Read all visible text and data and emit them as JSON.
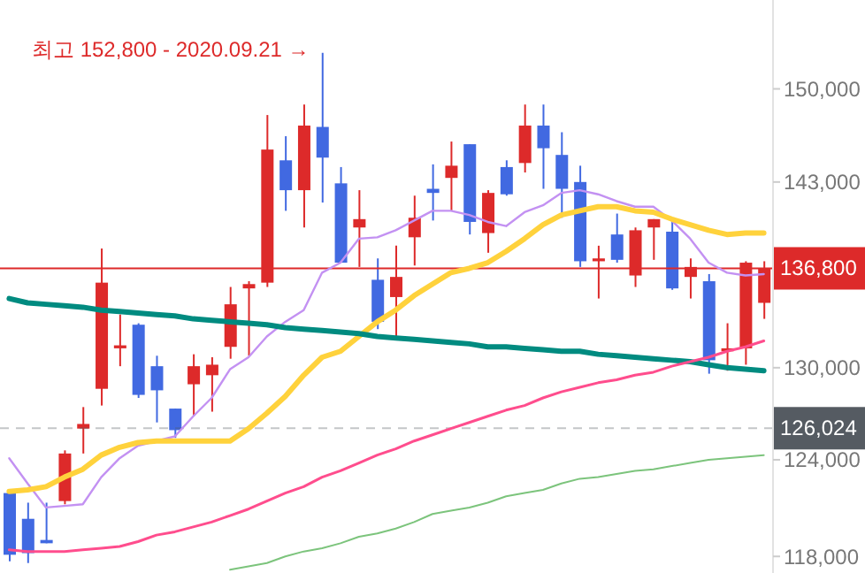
{
  "chart_data": {
    "type": "candlestick",
    "log": true,
    "tick_labels": "y",
    "categories": [
      null,
      null,
      null,
      null,
      null,
      null,
      null,
      null,
      null,
      null,
      null,
      null,
      null,
      null,
      null,
      null,
      null,
      null,
      null,
      null,
      null,
      null,
      null,
      null,
      null,
      null,
      null,
      null,
      null,
      null,
      null,
      null,
      null,
      null,
      null,
      null,
      null,
      null,
      null,
      null,
      null,
      null
    ],
    "ohlc": [
      [
        121900,
        122100,
        117700,
        118100
      ],
      [
        120300,
        121300,
        117600,
        118200
      ],
      [
        119000,
        121300,
        118800,
        118800
      ],
      [
        121400,
        124600,
        121200,
        124400
      ],
      [
        126000,
        127400,
        124400,
        126300
      ],
      [
        128600,
        138200,
        127500,
        135800
      ],
      [
        131300,
        133600,
        130100,
        131500
      ],
      [
        132900,
        133000,
        128000,
        128200
      ],
      [
        130100,
        130800,
        126400,
        128500
      ],
      [
        127300,
        127300,
        125400,
        125900
      ],
      [
        128900,
        130900,
        126800,
        130100
      ],
      [
        129500,
        130700,
        127100,
        130200
      ],
      [
        131400,
        135500,
        130600,
        134300
      ],
      [
        135400,
        135900,
        130800,
        135700
      ],
      [
        135800,
        148000,
        135500,
        145400
      ],
      [
        144600,
        146400,
        140900,
        142400
      ],
      [
        142400,
        148800,
        139700,
        147200
      ],
      [
        147100,
        152800,
        141500,
        144800
      ],
      [
        142900,
        144100,
        137200,
        137200
      ],
      [
        139700,
        142400,
        136900,
        140300
      ],
      [
        136000,
        137500,
        132600,
        133100
      ],
      [
        134800,
        138400,
        132000,
        136200
      ],
      [
        139000,
        142000,
        137000,
        140400
      ],
      [
        142500,
        144300,
        140200,
        142200
      ],
      [
        143300,
        146000,
        140900,
        144200
      ],
      [
        145800,
        145800,
        139200,
        140100
      ],
      [
        139300,
        142400,
        137900,
        142200
      ],
      [
        144100,
        144600,
        142000,
        142100
      ],
      [
        144400,
        148800,
        143700,
        147200
      ],
      [
        147200,
        148800,
        142500,
        145500
      ],
      [
        145000,
        146700,
        140400,
        142500
      ],
      [
        143000,
        144200,
        136900,
        137300
      ],
      [
        137300,
        138400,
        134700,
        137500
      ],
      [
        139200,
        140700,
        137200,
        137400
      ],
      [
        136300,
        139700,
        135500,
        139500
      ],
      [
        139700,
        140300,
        137400,
        140300
      ],
      [
        139400,
        140200,
        135300,
        135400
      ],
      [
        136200,
        137500,
        134700,
        136900
      ],
      [
        135900,
        136400,
        129600,
        130500
      ],
      [
        131100,
        133000,
        129800,
        131300
      ],
      [
        131300,
        137300,
        130200,
        137200
      ],
      [
        134400,
        137300,
        133300,
        136800
      ]
    ],
    "colors": [
      "#4169e1",
      "#4169e1",
      "#4169e1",
      "#dd2a2a",
      "#dd2a2a",
      "#dd2a2a",
      "#dd2a2a",
      "#4169e1",
      "#4169e1",
      "#4169e1",
      "#dd2a2a",
      "#dd2a2a",
      "#dd2a2a",
      "#dd2a2a",
      "#dd2a2a",
      "#4169e1",
      "#dd2a2a",
      "#4169e1",
      "#4169e1",
      "#dd2a2a",
      "#4169e1",
      "#dd2a2a",
      "#dd2a2a",
      "#4169e1",
      "#dd2a2a",
      "#4169e1",
      "#dd2a2a",
      "#4169e1",
      "#dd2a2a",
      "#4169e1",
      "#4169e1",
      "#4169e1",
      "#dd2a2a",
      "#4169e1",
      "#dd2a2a",
      "#dd2a2a",
      "#4169e1",
      "#dd2a2a",
      "#4169e1",
      "#dd2a2a",
      "#dd2a2a",
      "#dd2a2a"
    ],
    "series": [
      {
        "type": "line",
        "color": "#c391f2",
        "values": [
          124100,
          122500,
          121000,
          121100,
          121200,
          122900,
          124100,
          124900,
          125200,
          125500,
          126800,
          128000,
          129900,
          130700,
          132100,
          133100,
          133900,
          136500,
          137200,
          138900,
          139000,
          139500,
          140200,
          140900,
          140900,
          140600,
          140100,
          139800,
          140800,
          141300,
          142200,
          142400,
          142100,
          141600,
          141200,
          141200,
          140200,
          138900,
          137200,
          136500,
          136300,
          136400
        ]
      },
      {
        "type": "line",
        "color": "#ffd23c",
        "values": [
          122000,
          122100,
          122300,
          122900,
          123400,
          124300,
          124800,
          125100,
          125200,
          125200,
          125200,
          125200,
          125200,
          126000,
          127000,
          128100,
          129500,
          130700,
          131100,
          132100,
          133100,
          133900,
          134900,
          135700,
          136500,
          136800,
          137200,
          138000,
          138900,
          139900,
          140600,
          140900,
          141200,
          141200,
          140900,
          140800,
          140300,
          139900,
          139500,
          139200,
          139300,
          139300
        ]
      },
      {
        "type": "line",
        "color": "#008b80",
        "values": [
          134700,
          134400,
          134300,
          134200,
          134100,
          133900,
          133800,
          133700,
          133600,
          133500,
          133300,
          133200,
          133100,
          133000,
          132900,
          132700,
          132600,
          132500,
          132400,
          132300,
          132100,
          132000,
          131900,
          131800,
          131700,
          131600,
          131400,
          131400,
          131300,
          131200,
          131100,
          131100,
          130900,
          130800,
          130700,
          130600,
          130500,
          130400,
          130200,
          130000,
          129900,
          129800
        ]
      },
      {
        "type": "line",
        "color": "#ff4d8d",
        "values": [
          118400,
          118300,
          118300,
          118300,
          118400,
          118500,
          118600,
          118900,
          119300,
          119500,
          119800,
          120100,
          120500,
          120900,
          121400,
          121900,
          122300,
          122900,
          123300,
          123800,
          124300,
          124700,
          125200,
          125600,
          126000,
          126400,
          126800,
          127200,
          127500,
          128000,
          128400,
          128700,
          129000,
          129200,
          129500,
          129700,
          130100,
          130400,
          130700,
          131100,
          131400,
          131800
        ]
      },
      {
        "type": "line",
        "color": "#7cc47c",
        "values": [
          null,
          null,
          null,
          null,
          null,
          null,
          null,
          null,
          null,
          null,
          null,
          null,
          117200,
          117400,
          117600,
          118000,
          118300,
          118500,
          118800,
          119200,
          119400,
          119700,
          120100,
          120600,
          120800,
          121000,
          121300,
          121700,
          121900,
          122100,
          122500,
          122800,
          122900,
          123100,
          123300,
          123400,
          123600,
          123800,
          124000,
          124100,
          124200,
          124300
        ]
      }
    ],
    "ylim": [
      117000,
      157000
    ],
    "yticks": [
      {
        "value": 118000,
        "label": "118,000"
      },
      {
        "value": 124000,
        "label": "124,000"
      },
      {
        "value": 130000,
        "label": "130,000"
      },
      {
        "value": 143000,
        "label": "143,000"
      },
      {
        "value": 150000,
        "label": "150,000"
      }
    ],
    "ref_lines": [
      {
        "axis": "y",
        "value": 136800,
        "label": "136,800",
        "color": "#dd2a2a",
        "line_style": "solid"
      },
      {
        "axis": "y",
        "value": 126024,
        "label": "126,024",
        "color": "#555b62",
        "line_style": "dashed"
      }
    ],
    "annotations": [
      "최고 152,800 - 2020.09.21 →"
    ]
  }
}
